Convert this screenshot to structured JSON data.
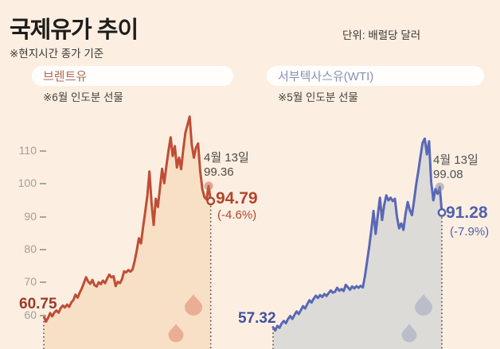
{
  "header": {
    "title": "국제유가 추이",
    "unit_label": "단위: 배럴당 달러",
    "note": "※현지시간 종가 기준"
  },
  "y_axis": {
    "ticks": [
      "110",
      "100",
      "90",
      "80",
      "70",
      "60"
    ],
    "tick_values": [
      110,
      100,
      90,
      80,
      70,
      60
    ],
    "color": "#a49d95"
  },
  "chart_data": [
    {
      "type": "area",
      "key": "brent",
      "name": "브렌트유",
      "contract_note": "※6월 인도분 선물",
      "start_label": "60.75",
      "start_value": 60.75,
      "annotation_date": "4월 13일",
      "annotation_value": "99.36",
      "end_label": "94.79",
      "end_value": 94.79,
      "end_change": "(-4.6%)",
      "line_color": "#bf4d36",
      "fill_color": "#f8e0c6",
      "drop_color": "#e7a88d",
      "dot_color": "#c96a52",
      "accent_color": "#b2442c",
      "start_color": "#9c3a27",
      "label_color": "#b2664f",
      "ylim": [
        55,
        125
      ],
      "values": [
        59.9,
        58.1,
        59.2,
        60.7,
        59.7,
        60.9,
        61.5,
        60.8,
        62.2,
        63.0,
        62.4,
        63.3,
        62.6,
        63.9,
        64.7,
        66.3,
        65.4,
        66.9,
        68.2,
        69.9,
        71.6,
        70.3,
        69.6,
        70.8,
        69.2,
        68.8,
        70.1,
        69.5,
        70.6,
        69.8,
        71.2,
        72.4,
        71.6,
        71.9,
        68.9,
        70.2,
        69.8,
        71.0,
        73.4,
        73.1,
        73.8,
        73.3,
        74.0,
        76.5,
        79.8,
        83.5,
        81.9,
        87.0,
        91.5,
        96.5,
        103.8,
        94.0,
        87.5,
        95.5,
        93.0,
        99.0,
        104.6,
        100.2,
        105.5,
        110.0,
        114.2,
        108.5,
        111.5,
        105.0,
        108.0,
        104.5,
        110.5,
        115.5,
        118.0,
        120.5,
        112.0,
        108.0,
        111.0,
        112.3,
        104.0,
        98.5,
        96.0,
        95.3,
        99.36,
        94.79
      ]
    },
    {
      "type": "area",
      "key": "wti",
      "name": "서부텍사스유(WTI)",
      "contract_note": "※5월 인도분 선물",
      "start_label": "57.32",
      "start_value": 57.32,
      "annotation_date": "4월 13일",
      "annotation_value": "99.08",
      "end_label": "91.28",
      "end_value": 91.28,
      "end_change": "(-7.9%)",
      "line_color": "#5968b5",
      "fill_color": "#dcdbd8",
      "drop_color": "#b6bac8",
      "dot_color": "#8a90a5",
      "accent_color": "#5060ac",
      "start_color": "#41519e",
      "label_color": "#8591b3",
      "ylim": [
        55,
        125
      ],
      "values": [
        56.4,
        55.4,
        56.8,
        56.2,
        57.5,
        58.3,
        57.6,
        58.9,
        59.8,
        58.9,
        60.1,
        61.2,
        60.4,
        61.6,
        62.8,
        62.1,
        63.4,
        64.6,
        63.9,
        65.1,
        66.0,
        65.3,
        66.2,
        65.6,
        66.5,
        65.9,
        66.8,
        67.6,
        66.9,
        67.2,
        68.4,
        67.5,
        68.0,
        67.4,
        69.3,
        68.6,
        67.8,
        68.8,
        68.2,
        68.9,
        68.4,
        69.0,
        68.5,
        72.0,
        76.5,
        81.0,
        86.0,
        91.8,
        84.8,
        90.5,
        95.8,
        89.0,
        93.5,
        96.5,
        95.0,
        95.8,
        94.8,
        95.5,
        90.0,
        86.5,
        88.0,
        86.0,
        91.0,
        94.5,
        92.0,
        90.5,
        95.0,
        100.0,
        104.0,
        108.5,
        112.5,
        113.8,
        109.0,
        113.0,
        100.5,
        95.0,
        98.5,
        97.0,
        99.08,
        91.28
      ]
    }
  ],
  "styles": {
    "background": "#fcefe2",
    "dotted_line_color": "#4d4d4d",
    "annotation_text_color": "#4c4843"
  }
}
